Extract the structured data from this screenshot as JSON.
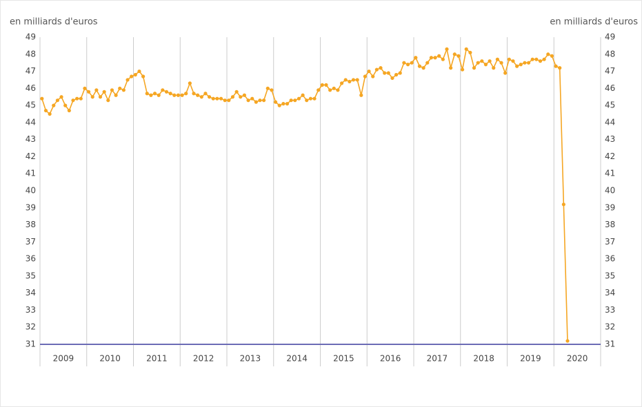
{
  "chart_data": {
    "type": "line",
    "ylabel": "en milliards d'euros",
    "y2label": "en milliards d'euros",
    "years": [
      "2009",
      "2010",
      "2011",
      "2012",
      "2013",
      "2014",
      "2015",
      "2016",
      "2017",
      "2018",
      "2019",
      "2020"
    ],
    "ylim": [
      31,
      49
    ],
    "yticks": [
      31,
      32,
      33,
      34,
      35,
      36,
      37,
      38,
      39,
      40,
      41,
      42,
      43,
      44,
      45,
      46,
      47,
      48,
      49
    ],
    "y2lim": [
      31,
      49
    ],
    "y2ticks": [
      31,
      32,
      33,
      34,
      35,
      36,
      37,
      38,
      39,
      40,
      41,
      42,
      43,
      44,
      45,
      46,
      47,
      48,
      49
    ],
    "grid": true,
    "series": [
      {
        "color": "#f5a623",
        "values": [
          45.4,
          44.7,
          44.5,
          45.0,
          45.3,
          45.5,
          45.0,
          44.7,
          45.3,
          45.4,
          45.4,
          46.0,
          45.8,
          45.5,
          45.9,
          45.5,
          45.8,
          45.3,
          45.9,
          45.6,
          46.0,
          45.9,
          46.5,
          46.7,
          46.8,
          47.0,
          46.7,
          45.7,
          45.6,
          45.7,
          45.6,
          45.9,
          45.8,
          45.7,
          45.6,
          45.6,
          45.6,
          45.7,
          46.3,
          45.7,
          45.6,
          45.5,
          45.7,
          45.5,
          45.4,
          45.4,
          45.4,
          45.3,
          45.3,
          45.5,
          45.8,
          45.5,
          45.6,
          45.3,
          45.4,
          45.2,
          45.3,
          45.3,
          46.0,
          45.9,
          45.2,
          45.0,
          45.1,
          45.1,
          45.3,
          45.3,
          45.4,
          45.6,
          45.3,
          45.4,
          45.4,
          45.9,
          46.2,
          46.2,
          45.9,
          46.0,
          45.9,
          46.3,
          46.5,
          46.4,
          46.5,
          46.5,
          45.6,
          46.7,
          47.0,
          46.7,
          47.1,
          47.2,
          46.9,
          46.9,
          46.6,
          46.8,
          46.9,
          47.5,
          47.4,
          47.5,
          47.8,
          47.3,
          47.2,
          47.5,
          47.8,
          47.8,
          47.9,
          47.7,
          48.3,
          47.2,
          48.0,
          47.9,
          47.1,
          48.3,
          48.1,
          47.2,
          47.5,
          47.6,
          47.4,
          47.6,
          47.2,
          47.7,
          47.5,
          46.9,
          47.7,
          47.6,
          47.3,
          47.4,
          47.5,
          47.5,
          47.7,
          47.7,
          47.6,
          47.7,
          48.0,
          47.9,
          47.3,
          47.2,
          39.2,
          31.2
        ]
      }
    ]
  }
}
